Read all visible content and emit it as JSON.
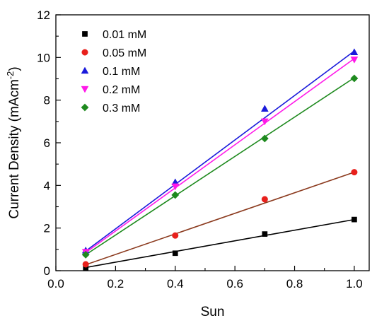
{
  "chart_data": {
    "type": "scatter",
    "title": "",
    "xlabel": "Sun",
    "ylabel_main": "Current Density (mAcm",
    "ylabel_sup": "-2",
    "ylabel_close": ")",
    "xlim": [
      0.0,
      1.05
    ],
    "ylim": [
      0,
      12
    ],
    "xticks": [
      0.0,
      0.2,
      0.4,
      0.6,
      0.8,
      1.0
    ],
    "xtick_labels": [
      "0.0",
      "0.2",
      "0.4",
      "0.6",
      "0.8",
      "1.0"
    ],
    "yticks": [
      0,
      2,
      4,
      6,
      8,
      10,
      12
    ],
    "ytick_labels": [
      "0",
      "2",
      "4",
      "6",
      "8",
      "10",
      "12"
    ],
    "grid": false,
    "legend_position": "top-left",
    "x": [
      0.1,
      0.4,
      0.7,
      1.0
    ],
    "series": [
      {
        "name": "0.01 mM",
        "marker": "square",
        "color": "#000000",
        "line_color": "#000000",
        "values": [
          0.12,
          0.82,
          1.72,
          2.4
        ],
        "fit_start": 0.15,
        "fit_end": 2.4
      },
      {
        "name": "0.05 mM",
        "marker": "circle",
        "color": "#e8201c",
        "line_color": "#8b3a1e",
        "values": [
          0.3,
          1.65,
          3.35,
          4.62
        ],
        "fit_start": 0.28,
        "fit_end": 4.62
      },
      {
        "name": "0.1 mM",
        "marker": "triangle-up",
        "color": "#1a1adb",
        "line_color": "#1a1adb",
        "values": [
          0.95,
          4.15,
          7.6,
          10.25
        ],
        "fit_start": 0.92,
        "fit_end": 10.3
      },
      {
        "name": "0.2 mM",
        "marker": "triangle-down",
        "color": "#ff19e8",
        "line_color": "#ff19e8",
        "values": [
          0.88,
          3.95,
          7.0,
          9.9
        ],
        "fit_start": 0.85,
        "fit_end": 9.95
      },
      {
        "name": "0.3 mM",
        "marker": "diamond",
        "color": "#1e8a1e",
        "line_color": "#1e8a1e",
        "values": [
          0.75,
          3.55,
          6.2,
          9.02
        ],
        "fit_start": 0.75,
        "fit_end": 9.05
      }
    ]
  }
}
